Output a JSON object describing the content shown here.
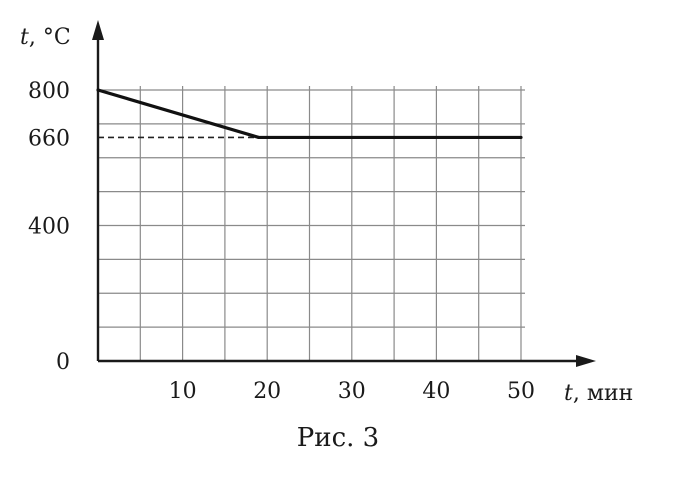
{
  "chart_data": {
    "type": "line",
    "title": "",
    "caption": "Рис. 3",
    "ylabel": {
      "symbol": "t",
      "unit": ", °C"
    },
    "xlabel": {
      "symbol": "t",
      "unit": ", мин"
    },
    "x_ticks": [
      {
        "value": 10,
        "label": "10"
      },
      {
        "value": 20,
        "label": "20"
      },
      {
        "value": 30,
        "label": "30"
      },
      {
        "value": 40,
        "label": "40"
      },
      {
        "value": 50,
        "label": "50"
      }
    ],
    "y_ticks": [
      {
        "value": 0,
        "label": "0"
      },
      {
        "value": 400,
        "label": "400"
      },
      {
        "value": 660,
        "label": "660"
      },
      {
        "value": 800,
        "label": "800"
      }
    ],
    "xlim": [
      0,
      50
    ],
    "ylim": [
      0,
      800
    ],
    "grid": true,
    "grid_step_x": 5,
    "grid_step_y": 100,
    "series": [
      {
        "x": [
          0,
          19,
          50
        ],
        "y": [
          800,
          660,
          660
        ]
      }
    ],
    "reference_lines": [
      {
        "orientation": "horizontal",
        "y": 660,
        "x_from": 0,
        "x_to": 19,
        "style": "dashed"
      }
    ]
  }
}
